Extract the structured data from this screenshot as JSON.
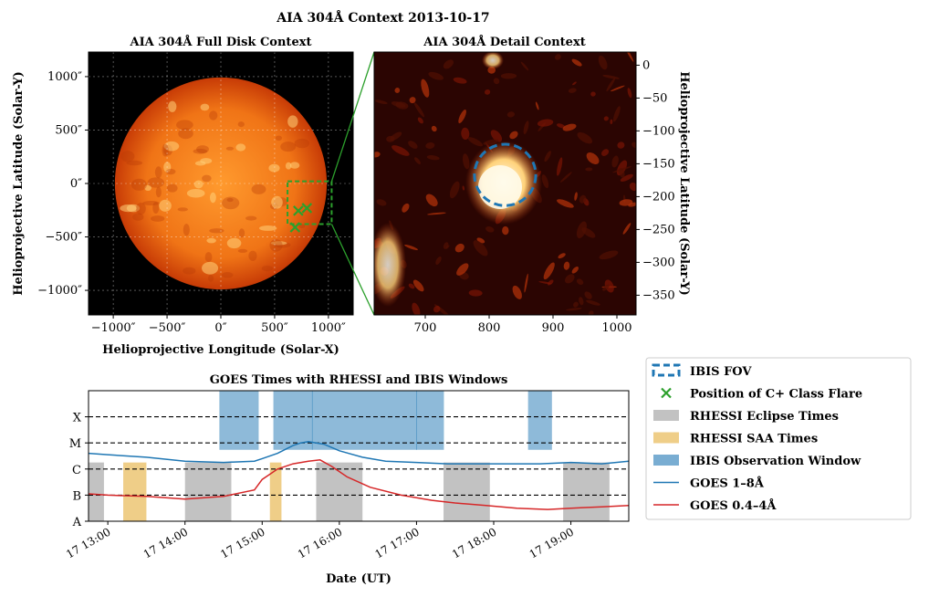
{
  "figure": {
    "suptitle": "AIA 304Å Context 2013-10-17"
  },
  "colors": {
    "sun_core": "#ff9a2e",
    "sun_edge": "#c73b06",
    "detail_bg": "#2b0502",
    "flare": "#fff6e0",
    "goes_long": "#1f77b4",
    "goes_short": "#d62728",
    "eclipse": "#999999",
    "saa": "#e5ae38",
    "ibis": "#1f77b4",
    "fov": "#1f77b4",
    "flare_marker": "#2ca02c",
    "zoom_box": "#2ca02c"
  },
  "chart_data": [
    {
      "type": "image",
      "title": "AIA 304Å Full Disk Context",
      "xlabel": "Helioprojective Longitude (Solar-X)",
      "ylabel": "Helioprojective Latitude (Solar-Y)",
      "xticks": [
        "−1000″",
        "−500″",
        "0″",
        "500″",
        "1000″"
      ],
      "xtick_values": [
        -1000,
        -500,
        0,
        500,
        1000
      ],
      "yticks": [
        "1000″",
        "500″",
        "0″",
        "−500″",
        "−1000″"
      ],
      "ytick_values": [
        1000,
        500,
        0,
        -500,
        -1000
      ],
      "xlim": [
        -1230,
        1230
      ],
      "ylim": [
        -1230,
        1230
      ],
      "solar_radius_arcsec": 985,
      "zoom_box": {
        "x0": 620,
        "x1": 1030,
        "y0": -380,
        "y1": 20
      },
      "flare_positions": [
        {
          "x": 720,
          "y": -255
        },
        {
          "x": 800,
          "y": -230
        },
        {
          "x": 690,
          "y": -410
        }
      ]
    },
    {
      "type": "image",
      "title": "AIA 304Å Detail Context",
      "ylabel": "Helioprojective Latitude (Solar-Y)",
      "xticks": [
        "700",
        "800",
        "900",
        "1000"
      ],
      "xtick_values": [
        700,
        800,
        900,
        1000
      ],
      "yticks": [
        "0",
        "−50",
        "−100",
        "−150",
        "−200",
        "−250",
        "−300",
        "−350"
      ],
      "ytick_values": [
        0,
        -50,
        -100,
        -150,
        -200,
        -250,
        -300,
        -350
      ],
      "xlim": [
        620,
        1030
      ],
      "ylim": [
        -380,
        20
      ],
      "ibis_fov": {
        "x": 825,
        "y": -167,
        "r": 48
      }
    },
    {
      "type": "line",
      "title": "GOES Times with RHESSI and IBIS Windows",
      "xlabel": "Date (UT)",
      "xticks": [
        "17 13:00",
        "17 14:00",
        "17 15:00",
        "17 16:00",
        "17 17:00",
        "17 18:00",
        "17 19:00"
      ],
      "xtick_values": [
        13,
        14,
        15,
        16,
        17,
        18,
        19
      ],
      "xlim": [
        12.75,
        19.75
      ],
      "yticks": [
        "X",
        "M",
        "C",
        "B",
        "A"
      ],
      "ytick_levels": [
        4,
        3,
        2,
        1,
        0
      ],
      "ylim": [
        0,
        5
      ],
      "flare_class_lines": [
        1,
        2,
        3,
        4
      ],
      "rhessi_eclipse": [
        [
          12.75,
          12.95
        ],
        [
          14.0,
          14.6
        ],
        [
          15.7,
          16.3
        ],
        [
          17.35,
          17.95
        ],
        [
          18.9,
          19.5
        ]
      ],
      "rhessi_saa": [
        [
          13.2,
          13.5
        ],
        [
          15.1,
          15.25
        ]
      ],
      "ibis_windows": [
        [
          14.45,
          14.95
        ],
        [
          15.15,
          15.65
        ],
        [
          15.65,
          17.0
        ],
        [
          17.0,
          17.35
        ],
        [
          18.45,
          18.75
        ]
      ],
      "ibis_window_levels": [
        2.75,
        5.0
      ],
      "series": [
        {
          "name": "GOES 1–8Å",
          "x": [
            12.75,
            13.0,
            13.5,
            14.0,
            14.5,
            14.9,
            15.0,
            15.2,
            15.4,
            15.5,
            15.6,
            15.7,
            15.8,
            16.0,
            16.3,
            16.6,
            17.0,
            17.4,
            17.8,
            18.2,
            18.6,
            19.0,
            19.4,
            19.75
          ],
          "values": [
            2.6,
            2.55,
            2.45,
            2.3,
            2.25,
            2.3,
            2.4,
            2.6,
            2.9,
            3.0,
            3.05,
            3.0,
            2.95,
            2.7,
            2.45,
            2.3,
            2.25,
            2.2,
            2.2,
            2.2,
            2.2,
            2.25,
            2.2,
            2.3
          ]
        },
        {
          "name": "GOES 0.4–4Å",
          "x": [
            12.75,
            13.0,
            13.5,
            14.0,
            14.5,
            14.9,
            15.0,
            15.2,
            15.4,
            15.6,
            15.75,
            15.9,
            16.1,
            16.4,
            16.8,
            17.2,
            17.5,
            17.9,
            18.3,
            18.7,
            19.0,
            19.4,
            19.75
          ],
          "values": [
            1.05,
            1.0,
            0.95,
            0.85,
            0.95,
            1.2,
            1.6,
            2.0,
            2.2,
            2.3,
            2.35,
            2.1,
            1.7,
            1.3,
            1.0,
            0.8,
            0.7,
            0.6,
            0.5,
            0.45,
            0.5,
            0.55,
            0.6
          ]
        }
      ],
      "legend": {
        "placement": "right",
        "entries": [
          {
            "label": "IBIS FOV",
            "kind": "dashed-circle"
          },
          {
            "label": "Position of C+ Class Flare",
            "kind": "x-marker"
          },
          {
            "label": "RHESSI Eclipse Times",
            "kind": "patch-eclipse"
          },
          {
            "label": "RHESSI SAA Times",
            "kind": "patch-saa"
          },
          {
            "label": "IBIS Observation Window",
            "kind": "patch-ibis"
          },
          {
            "label": "GOES 1–8Å",
            "kind": "line-long"
          },
          {
            "label": "GOES 0.4–4Å",
            "kind": "line-short"
          }
        ]
      }
    }
  ]
}
